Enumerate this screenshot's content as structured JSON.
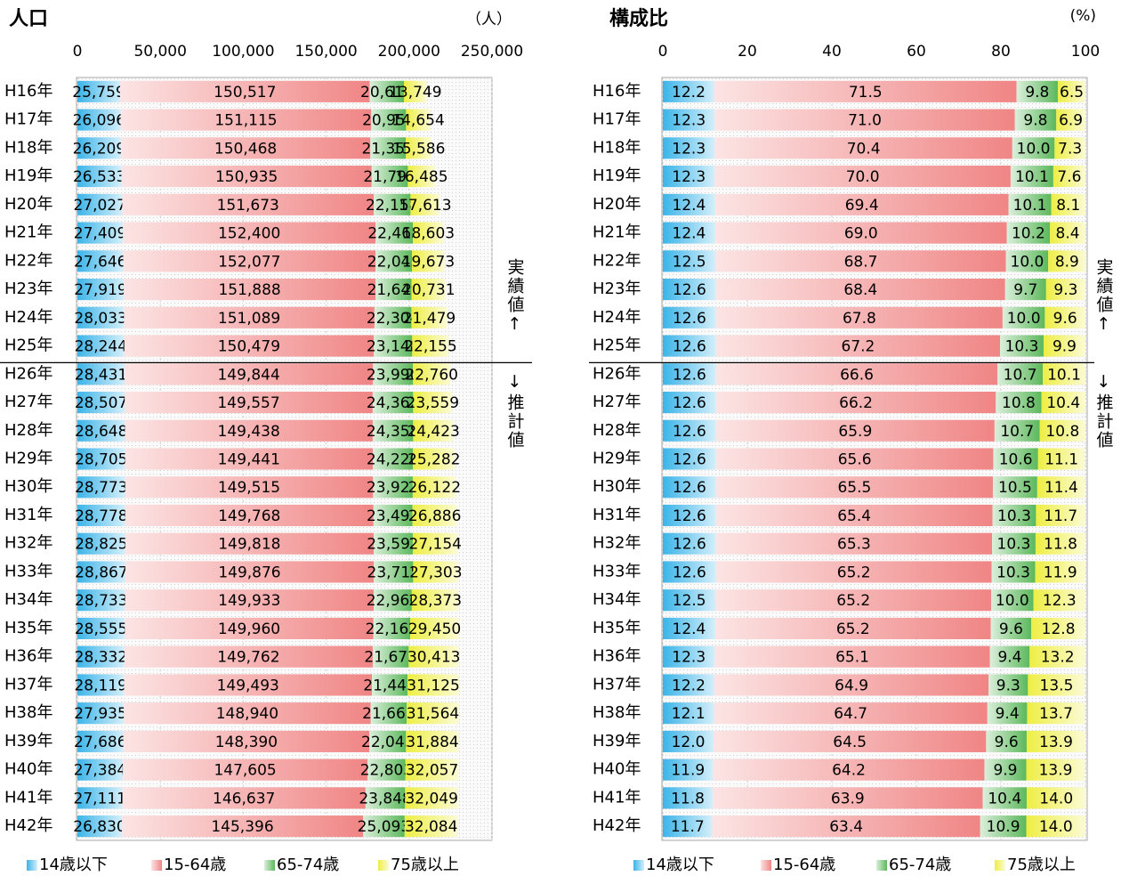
{
  "chart_data": [
    {
      "type": "stacked-bar-horizontal",
      "title": "人口",
      "unit": "（人）",
      "categories": [
        "H16年",
        "H17年",
        "H18年",
        "H19年",
        "H20年",
        "H21年",
        "H22年",
        "H23年",
        "H24年",
        "H25年",
        "H26年",
        "H27年",
        "H28年",
        "H29年",
        "H30年",
        "H31年",
        "H32年",
        "H33年",
        "H34年",
        "H35年",
        "H36年",
        "H37年",
        "H38年",
        "H39年",
        "H40年",
        "H41年",
        "H42年"
      ],
      "xlim": [
        0,
        250000
      ],
      "xticks": [
        0,
        {
          "value": 50000,
          "label": "50,000"
        },
        {
          "value": 100000,
          "label": "100,000"
        },
        {
          "value": 150000,
          "label": "150,000"
        },
        {
          "value": 200000,
          "label": "200,000"
        },
        {
          "value": 250000,
          "label": "250,000"
        }
      ],
      "grid": true,
      "annotations": [
        "実績値↑",
        "↓推計値"
      ],
      "series": [
        {
          "name": "14歳以下",
          "color": "#3cb4e8",
          "values": [
            25759,
            26096,
            26209,
            26533,
            27027,
            27409,
            27646,
            27919,
            28033,
            28244,
            28431,
            28507,
            28648,
            28705,
            28773,
            28778,
            28825,
            28867,
            28733,
            28555,
            28332,
            28119,
            27935,
            27686,
            27384,
            27111,
            26830
          ],
          "value_labels": [
            "25,759",
            "26,096",
            "26,209",
            "26,533",
            "27,027",
            "27,409",
            "27,646",
            "27,919",
            "28,033",
            "28,244",
            "28,431",
            "28,507",
            "28,648",
            "28,705",
            "28,773",
            "28,778",
            "28,825",
            "28,867",
            "28,733",
            "28,555",
            "28,332",
            "28,119",
            "27,935",
            "27,686",
            "27,384",
            "27,111",
            "26,830"
          ]
        },
        {
          "name": "15-64歳",
          "color": "#f08585",
          "values": [
            150517,
            151115,
            150468,
            150935,
            151673,
            152400,
            152077,
            151888,
            151089,
            150479,
            149844,
            149557,
            149438,
            149441,
            149515,
            149768,
            149818,
            149876,
            149933,
            149960,
            149762,
            149493,
            148940,
            148390,
            147605,
            146637,
            145396
          ],
          "value_labels": [
            "150,517",
            "151,115",
            "150,468",
            "150,935",
            "151,673",
            "152,400",
            "152,077",
            "151,888",
            "151,089",
            "150,479",
            "149,844",
            "149,557",
            "149,438",
            "149,441",
            "149,515",
            "149,768",
            "149,818",
            "149,876",
            "149,933",
            "149,960",
            "149,762",
            "149,493",
            "148,940",
            "148,390",
            "147,605",
            "146,637",
            "145,396"
          ]
        },
        {
          "name": "65-74歳",
          "color": "#5cb85c",
          "values": [
            20613,
            20958,
            21350,
            21797,
            22158,
            22463,
            22045,
            21649,
            22304,
            23148,
            23990,
            24362,
            24358,
            24220,
            23927,
            23491,
            23591,
            23715,
            22960,
            22167,
            21678,
            21442,
            21667,
            22045,
            22803,
            23848,
            25093
          ],
          "value_labels": [
            "20,613",
            "20,958",
            "21,350",
            "21,797",
            "22,158",
            "22,463",
            "22,045",
            "21,649",
            "22,304",
            "23,148",
            "23,990",
            "24,362",
            "24,358",
            "24,220",
            "23,927",
            "23,491",
            "23,591",
            "23,715",
            "22,960",
            "22,167",
            "21,678",
            "21,442",
            "21,667",
            "22,045",
            "22,803",
            "23,848",
            "25,093"
          ]
        },
        {
          "name": "75歳以上",
          "color": "#eeee44",
          "values": [
            13749,
            14654,
            15586,
            16485,
            17613,
            18603,
            19673,
            20731,
            21479,
            22155,
            22760,
            23559,
            24423,
            25282,
            26122,
            26886,
            27154,
            27303,
            28373,
            29450,
            30413,
            31125,
            31564,
            31884,
            32057,
            32049,
            32084
          ],
          "value_labels": [
            "13,749",
            "14,654",
            "15,586",
            "16,485",
            "17,613",
            "18,603",
            "19,673",
            "20,731",
            "21,479",
            "22,155",
            "22,760",
            "23,559",
            "24,423",
            "25,282",
            "26,122",
            "26,886",
            "27,154",
            "27,303",
            "28,373",
            "29,450",
            "30,413",
            "31,125",
            "31,564",
            "31,884",
            "32,057",
            "32,049",
            "32,084"
          ]
        }
      ]
    },
    {
      "type": "stacked-bar-horizontal",
      "title": "構成比",
      "unit": "(%)",
      "categories": [
        "H16年",
        "H17年",
        "H18年",
        "H19年",
        "H20年",
        "H21年",
        "H22年",
        "H23年",
        "H24年",
        "H25年",
        "H26年",
        "H27年",
        "H28年",
        "H29年",
        "H30年",
        "H31年",
        "H32年",
        "H33年",
        "H34年",
        "H35年",
        "H36年",
        "H37年",
        "H38年",
        "H39年",
        "H40年",
        "H41年",
        "H42年"
      ],
      "xlim": [
        0,
        100
      ],
      "xticks": [
        0,
        20,
        40,
        60,
        80,
        100
      ],
      "grid": true,
      "annotations": [
        "実績値↑",
        "↓推計値"
      ],
      "series": [
        {
          "name": "14歳以下",
          "color": "#3cb4e8",
          "values": [
            12.2,
            12.3,
            12.3,
            12.3,
            12.4,
            12.4,
            12.5,
            12.6,
            12.6,
            12.6,
            12.6,
            12.6,
            12.6,
            12.6,
            12.6,
            12.6,
            12.6,
            12.6,
            12.5,
            12.4,
            12.3,
            12.2,
            12.1,
            12.0,
            11.9,
            11.8,
            11.7
          ],
          "value_labels": [
            "12.2",
            "12.3",
            "12.3",
            "12.3",
            "12.4",
            "12.4",
            "12.5",
            "12.6",
            "12.6",
            "12.6",
            "12.6",
            "12.6",
            "12.6",
            "12.6",
            "12.6",
            "12.6",
            "12.6",
            "12.6",
            "12.5",
            "12.4",
            "12.3",
            "12.2",
            "12.1",
            "12.0",
            "11.9",
            "11.8",
            "11.7"
          ]
        },
        {
          "name": "15-64歳",
          "color": "#f08585",
          "values": [
            71.5,
            71.0,
            70.4,
            70.0,
            69.4,
            69.0,
            68.7,
            68.4,
            67.8,
            67.2,
            66.6,
            66.2,
            65.9,
            65.6,
            65.5,
            65.4,
            65.3,
            65.2,
            65.2,
            65.2,
            65.1,
            64.9,
            64.7,
            64.5,
            64.2,
            63.9,
            63.4
          ],
          "value_labels": [
            "71.5",
            "71.0",
            "70.4",
            "70.0",
            "69.4",
            "69.0",
            "68.7",
            "68.4",
            "67.8",
            "67.2",
            "66.6",
            "66.2",
            "65.9",
            "65.6",
            "65.5",
            "65.4",
            "65.3",
            "65.2",
            "65.2",
            "65.2",
            "65.1",
            "64.9",
            "64.7",
            "64.5",
            "64.2",
            "63.9",
            "63.4"
          ]
        },
        {
          "name": "65-74歳",
          "color": "#5cb85c",
          "values": [
            9.8,
            9.8,
            10.0,
            10.1,
            10.1,
            10.2,
            10.0,
            9.7,
            10.0,
            10.3,
            10.7,
            10.8,
            10.7,
            10.6,
            10.5,
            10.3,
            10.3,
            10.3,
            10.0,
            9.6,
            9.4,
            9.3,
            9.4,
            9.6,
            9.9,
            10.4,
            10.9
          ],
          "value_labels": [
            "9.8",
            "9.8",
            "10.0",
            "10.1",
            "10.1",
            "10.2",
            "10.0",
            "9.7",
            "10.0",
            "10.3",
            "10.7",
            "10.8",
            "10.7",
            "10.6",
            "10.5",
            "10.3",
            "10.3",
            "10.3",
            "10.0",
            "9.6",
            "9.4",
            "9.3",
            "9.4",
            "9.6",
            "9.9",
            "10.4",
            "10.9"
          ]
        },
        {
          "name": "75歳以上",
          "color": "#eeee44",
          "values": [
            6.5,
            6.9,
            7.3,
            7.6,
            8.1,
            8.4,
            8.9,
            9.3,
            9.6,
            9.9,
            10.1,
            10.4,
            10.8,
            11.1,
            11.4,
            11.7,
            11.8,
            11.9,
            12.3,
            12.8,
            13.2,
            13.5,
            13.7,
            13.9,
            13.9,
            14.0,
            14.0
          ],
          "value_labels": [
            "6.5",
            "6.9",
            "7.3",
            "7.6",
            "8.1",
            "8.4",
            "8.9",
            "9.3",
            "9.6",
            "9.9",
            "10.1",
            "10.4",
            "10.8",
            "11.1",
            "11.4",
            "11.7",
            "11.8",
            "11.9",
            "12.3",
            "12.8",
            "13.2",
            "13.5",
            "13.7",
            "13.9",
            "13.9",
            "14.0",
            "14.0"
          ]
        }
      ]
    }
  ]
}
